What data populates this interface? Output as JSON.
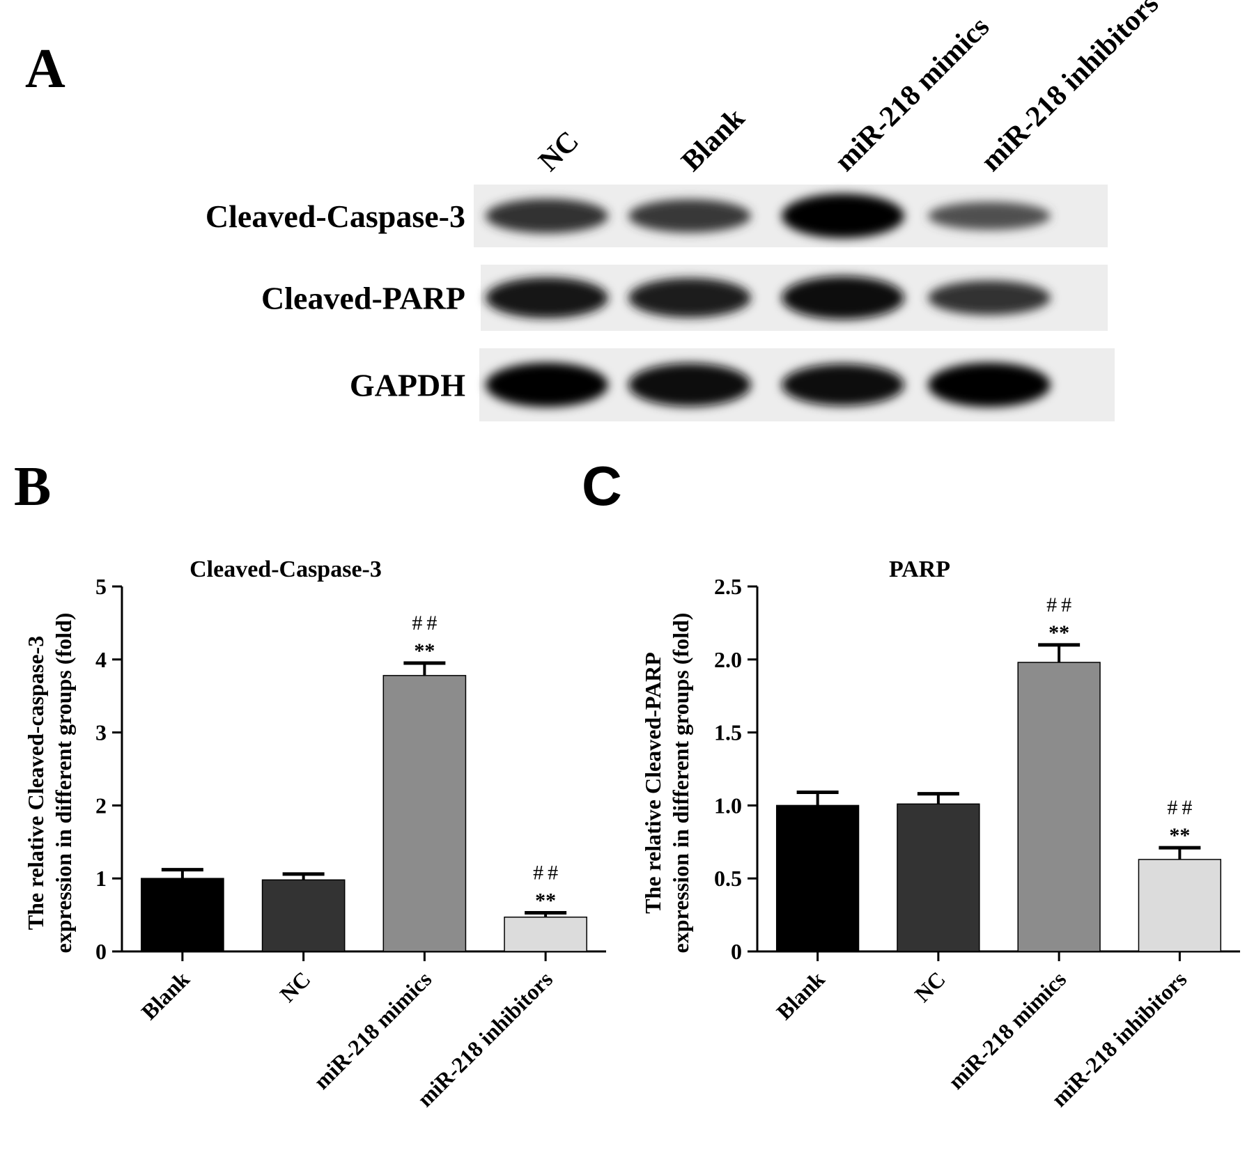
{
  "panels": {
    "a_letter": "A",
    "b_letter": "B",
    "c_letter": "C"
  },
  "blot": {
    "lanes": [
      "NC",
      "Blank",
      "miR-218 mimics",
      "miR-218 inhibitors"
    ],
    "rows": [
      {
        "label": "Cleaved-Caspase-3",
        "intensity": [
          0.6,
          0.55,
          1.0,
          0.35
        ]
      },
      {
        "label": "Cleaved-PARP",
        "intensity": [
          0.85,
          0.8,
          0.95,
          0.6
        ]
      },
      {
        "label": "GAPDH",
        "intensity": [
          1.0,
          0.95,
          0.9,
          1.0
        ]
      }
    ]
  },
  "chart_data": [
    {
      "type": "bar",
      "title": "Cleaved-Caspase-3",
      "ylabel_lines": [
        "The relative Cleaved-caspase-3",
        "expression in different groups (fold)"
      ],
      "categories": [
        "Blank",
        "NC",
        "miR-218 mimics",
        "miR-218 inhibitors"
      ],
      "values": [
        1.0,
        0.98,
        3.78,
        0.47
      ],
      "errors": [
        0.12,
        0.08,
        0.17,
        0.06
      ],
      "bar_colors": [
        "#000000",
        "#333333",
        "#8c8c8c",
        "#dcdcdc"
      ],
      "ylim": [
        0,
        5
      ],
      "yticks": [
        "0",
        "1",
        "2",
        "3",
        "4",
        "5"
      ],
      "annotations": [
        {
          "category": "miR-218 mimics",
          "stars": "**",
          "hashes": "##"
        },
        {
          "category": "miR-218 inhibitors",
          "stars": "**",
          "hashes": "##"
        }
      ],
      "grid": false
    },
    {
      "type": "bar",
      "title": "PARP",
      "ylabel_lines": [
        "The relative Cleaved-PARP",
        "expression in different groups (fold)"
      ],
      "categories": [
        "Blank",
        "NC",
        "miR-218 mimics",
        "miR-218 inhibitors"
      ],
      "values": [
        1.0,
        1.01,
        1.98,
        0.63
      ],
      "errors": [
        0.09,
        0.07,
        0.12,
        0.08
      ],
      "bar_colors": [
        "#000000",
        "#333333",
        "#8c8c8c",
        "#dcdcdc"
      ],
      "ylim": [
        0,
        2.5
      ],
      "yticks": [
        "0",
        "0.5",
        "1.0",
        "1.5",
        "2.0",
        "2.5"
      ],
      "annotations": [
        {
          "category": "miR-218 mimics",
          "stars": "**",
          "hashes": "##"
        },
        {
          "category": "miR-218 inhibitors",
          "stars": "**",
          "hashes": "##"
        }
      ],
      "grid": false
    }
  ]
}
